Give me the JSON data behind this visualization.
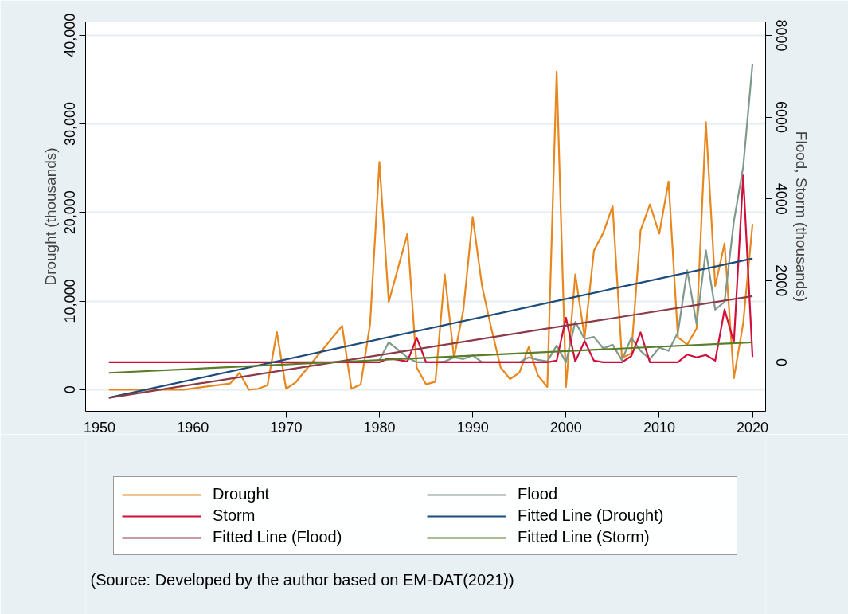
{
  "chart_data": {
    "type": "line",
    "xlabel": null,
    "ylabel": "Drought (thousands)",
    "y2label": "Flood, Storm (thousands)",
    "xlim": [
      1948.5,
      2021.4
    ],
    "xticks": [
      1950,
      1960,
      1970,
      1980,
      1990,
      2000,
      2010,
      2020
    ],
    "ylim": [
      -2440,
      41500
    ],
    "yticks": [
      0,
      {
        "value": 10000,
        "label": "10,000"
      },
      {
        "value": 20000,
        "label": "20,000"
      },
      {
        "value": 30000,
        "label": "30,000"
      },
      {
        "value": 40000,
        "label": "40,000"
      }
    ],
    "y2lim": [
      -1200,
      8330
    ],
    "y2ticks": [
      0,
      2000,
      4000,
      6000,
      8000
    ],
    "grid": "y",
    "legend": "bottom",
    "line_style": "solid",
    "marker": "none",
    "annotations": [
      "(Source: Developed by the author based on EM-DAT(2021))"
    ],
    "series": [
      {
        "name": "Drought",
        "color": "#e8871e",
        "axis": "y",
        "x": [
          1951,
          1959,
          1964,
          1965,
          1966,
          1967,
          1968,
          1969,
          1970,
          1971,
          1976,
          1977,
          1978,
          1979,
          1980,
          1981,
          1983,
          1984,
          1985,
          1986,
          1987,
          1988,
          1989,
          1990,
          1991,
          1992,
          1993,
          1994,
          1995,
          1996,
          1997,
          1998,
          1999,
          2000,
          2001,
          2002,
          2003,
          2004,
          2005,
          2006,
          2007,
          2008,
          2009,
          2010,
          2011,
          2012,
          2013,
          2014,
          2015,
          2016,
          2017,
          2018,
          2019,
          2020
        ],
        "values": [
          0,
          0,
          700,
          1900,
          0,
          100,
          500,
          6500,
          100,
          800,
          7200,
          100,
          600,
          7400,
          25700,
          9900,
          17600,
          2500,
          600,
          900,
          13000,
          3600,
          9000,
          19500,
          11700,
          6900,
          2500,
          1200,
          1900,
          4800,
          1600,
          300,
          35900,
          300,
          13000,
          5900,
          15700,
          17700,
          20700,
          3600,
          4100,
          18000,
          20900,
          17600,
          23500,
          5900,
          5100,
          6900,
          30200,
          11700,
          16500,
          1300,
          7500,
          18700
        ]
      },
      {
        "name": "Flood",
        "color": "#7f9a8c",
        "axis": "y2",
        "x": [
          1980,
          1981,
          1983,
          1984,
          1985,
          1986,
          1987,
          1988,
          1989,
          1990,
          1991,
          1992,
          1993,
          1994,
          1995,
          1996,
          1997,
          1998,
          1999,
          2000,
          2001,
          2002,
          2003,
          2004,
          2005,
          2006,
          2007,
          2008,
          2009,
          2010,
          2011,
          2012,
          2013,
          2014,
          2015,
          2016,
          2017,
          2018,
          2019,
          2020
        ],
        "values": [
          50,
          490,
          120,
          0,
          0,
          0,
          20,
          120,
          80,
          170,
          0,
          0,
          0,
          0,
          0,
          120,
          60,
          20,
          410,
          0,
          990,
          570,
          620,
          340,
          430,
          50,
          600,
          280,
          80,
          360,
          280,
          730,
          2250,
          940,
          2740,
          1290,
          1480,
          3450,
          4780,
          7310
        ]
      },
      {
        "name": "Storm",
        "color": "#d0103a",
        "axis": "y2",
        "x": [
          1951,
          1980,
          1981,
          1983,
          1984,
          1985,
          1998,
          1999,
          2000,
          2001,
          2002,
          2003,
          2004,
          2005,
          2006,
          2007,
          2008,
          2009,
          2010,
          2011,
          2012,
          2013,
          2014,
          2015,
          2016,
          2017,
          2018,
          2019,
          2020
        ],
        "values": [
          0,
          0,
          100,
          20,
          600,
          0,
          0,
          40,
          1090,
          20,
          520,
          40,
          0,
          0,
          0,
          150,
          730,
          0,
          0,
          0,
          0,
          190,
          120,
          180,
          40,
          1290,
          490,
          4570,
          130
        ]
      },
      {
        "name": "Fitted Line (Drought)",
        "color": "#1c4b7c",
        "axis": "y",
        "x": [
          1951,
          2020
        ],
        "values": [
          -900,
          14800
        ]
      },
      {
        "name": "Fitted Line (Flood)",
        "color": "#8b3a48",
        "axis": "y2",
        "x": [
          1951,
          2020
        ],
        "values": [
          -870,
          1620
        ]
      },
      {
        "name": "Fitted Line (Storm)",
        "color": "#5a7d2a",
        "axis": "y2",
        "x": [
          1951,
          2020
        ],
        "values": [
          -260,
          490
        ]
      }
    ]
  }
}
